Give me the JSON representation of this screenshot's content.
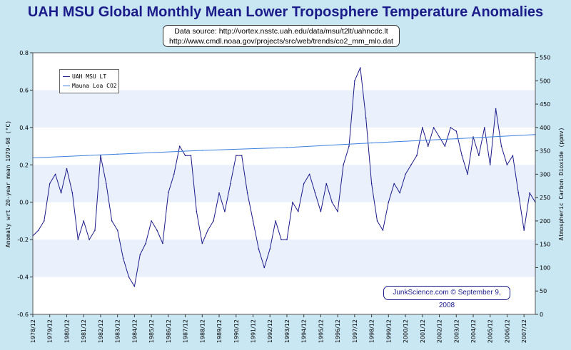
{
  "title": "UAH MSU Global Monthly Mean Lower Troposphere Temperature Anomalies",
  "source": {
    "line1": "Data source: http://vortex.nsstc.uah.edu/data/msu/t2lt/uahncdc.lt",
    "line2": "http://www.cmdl.noaa.gov/projects/src/web/trends/co2_mm_mlo.dat"
  },
  "credit": "JunkScience.com © September 9, 2008",
  "chart_data": {
    "type": "line",
    "xlabel": "",
    "ylabel": "Anomaly wrt 20-year mean 1979-98 (°C)",
    "y2label": "Atmospheric Carbon Dioxide (ppmv)",
    "ylim": [
      -0.6,
      0.8
    ],
    "y2lim": [
      0,
      560
    ],
    "y_ticks": [
      "-0.6",
      "-0.4",
      "-0.2",
      "0.0",
      "0.2",
      "0.4",
      "0.6",
      "0.8"
    ],
    "y2_ticks": [
      "0",
      "50",
      "100",
      "150",
      "200",
      "250",
      "300",
      "350",
      "400",
      "450",
      "500",
      "550"
    ],
    "x_ticks": [
      "1978/12",
      "1979/12",
      "1980/12",
      "1981/12",
      "1982/12",
      "1983/12",
      "1984/12",
      "1985/12",
      "1986/12",
      "1987/12",
      "1988/12",
      "1989/12",
      "1990/12",
      "1991/12",
      "1992/12",
      "1993/12",
      "1994/12",
      "1995/12",
      "1996/12",
      "1997/12",
      "1998/12",
      "1999/12",
      "2000/12",
      "2001/12",
      "2002/12",
      "2003/12",
      "2004/12",
      "2005/12",
      "2006/12",
      "2007/12"
    ],
    "x_start": "1978/12",
    "x_end": "2008/08",
    "grid": "horizontal bands",
    "legend_position": "top-left",
    "series": [
      {
        "name": "UAH MSU LT",
        "axis": "left",
        "color": "#1B1B8A",
        "points": [
          [
            "1978/12",
            -0.18
          ],
          [
            "1979/04",
            -0.15
          ],
          [
            "1979/08",
            -0.1
          ],
          [
            "1979/12",
            0.1
          ],
          [
            "1980/04",
            0.15
          ],
          [
            "1980/08",
            0.05
          ],
          [
            "1980/12",
            0.18
          ],
          [
            "1981/04",
            0.05
          ],
          [
            "1981/08",
            -0.2
          ],
          [
            "1981/12",
            -0.1
          ],
          [
            "1982/04",
            -0.2
          ],
          [
            "1982/08",
            -0.15
          ],
          [
            "1982/12",
            0.25
          ],
          [
            "1983/04",
            0.1
          ],
          [
            "1983/08",
            -0.1
          ],
          [
            "1983/12",
            -0.15
          ],
          [
            "1984/04",
            -0.3
          ],
          [
            "1984/08",
            -0.4
          ],
          [
            "1984/12",
            -0.45
          ],
          [
            "1985/04",
            -0.28
          ],
          [
            "1985/08",
            -0.22
          ],
          [
            "1985/12",
            -0.1
          ],
          [
            "1986/04",
            -0.15
          ],
          [
            "1986/08",
            -0.22
          ],
          [
            "1986/12",
            0.05
          ],
          [
            "1987/04",
            0.15
          ],
          [
            "1987/08",
            0.3
          ],
          [
            "1987/12",
            0.25
          ],
          [
            "1988/04",
            0.25
          ],
          [
            "1988/08",
            -0.05
          ],
          [
            "1988/12",
            -0.22
          ],
          [
            "1989/04",
            -0.15
          ],
          [
            "1989/08",
            -0.1
          ],
          [
            "1989/12",
            0.05
          ],
          [
            "1990/04",
            -0.05
          ],
          [
            "1990/08",
            0.1
          ],
          [
            "1990/12",
            0.25
          ],
          [
            "1991/04",
            0.25
          ],
          [
            "1991/08",
            0.05
          ],
          [
            "1991/12",
            -0.1
          ],
          [
            "1992/04",
            -0.25
          ],
          [
            "1992/08",
            -0.35
          ],
          [
            "1992/12",
            -0.25
          ],
          [
            "1993/04",
            -0.1
          ],
          [
            "1993/08",
            -0.2
          ],
          [
            "1993/12",
            -0.2
          ],
          [
            "1994/04",
            0.0
          ],
          [
            "1994/08",
            -0.05
          ],
          [
            "1994/12",
            0.1
          ],
          [
            "1995/04",
            0.15
          ],
          [
            "1995/08",
            0.05
          ],
          [
            "1995/12",
            -0.05
          ],
          [
            "1996/04",
            0.1
          ],
          [
            "1996/08",
            0.0
          ],
          [
            "1996/12",
            -0.05
          ],
          [
            "1997/04",
            0.2
          ],
          [
            "1997/08",
            0.3
          ],
          [
            "1997/12",
            0.65
          ],
          [
            "1998/04",
            0.72
          ],
          [
            "1998/08",
            0.45
          ],
          [
            "1998/12",
            0.1
          ],
          [
            "1999/04",
            -0.1
          ],
          [
            "1999/08",
            -0.15
          ],
          [
            "1999/12",
            0.0
          ],
          [
            "2000/04",
            0.1
          ],
          [
            "2000/08",
            0.05
          ],
          [
            "2000/12",
            0.15
          ],
          [
            "2001/04",
            0.2
          ],
          [
            "2001/08",
            0.25
          ],
          [
            "2001/12",
            0.4
          ],
          [
            "2002/04",
            0.3
          ],
          [
            "2002/08",
            0.4
          ],
          [
            "2002/12",
            0.35
          ],
          [
            "2003/04",
            0.3
          ],
          [
            "2003/08",
            0.4
          ],
          [
            "2003/12",
            0.38
          ],
          [
            "2004/04",
            0.25
          ],
          [
            "2004/08",
            0.15
          ],
          [
            "2004/12",
            0.35
          ],
          [
            "2005/04",
            0.25
          ],
          [
            "2005/08",
            0.4
          ],
          [
            "2005/12",
            0.2
          ],
          [
            "2006/04",
            0.5
          ],
          [
            "2006/08",
            0.3
          ],
          [
            "2006/12",
            0.2
          ],
          [
            "2007/04",
            0.25
          ],
          [
            "2007/08",
            0.05
          ],
          [
            "2007/12",
            -0.15
          ],
          [
            "2008/04",
            0.05
          ],
          [
            "2008/08",
            0.0
          ]
        ]
      },
      {
        "name": "Mauna Loa CO2",
        "axis": "right",
        "color": "#3A80E0",
        "points": [
          [
            "1978/12",
            335
          ],
          [
            "1983/12",
            343
          ],
          [
            "1988/12",
            351
          ],
          [
            "1993/12",
            357
          ],
          [
            "1998/12",
            367
          ],
          [
            "2003/12",
            376
          ],
          [
            "2008/08",
            385
          ]
        ]
      }
    ]
  }
}
